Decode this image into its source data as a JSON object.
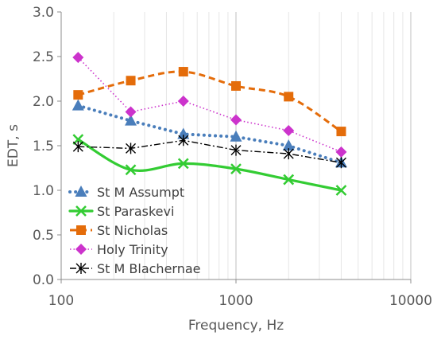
{
  "chart_data": {
    "type": "line",
    "xlabel": "Frequency, Hz",
    "ylabel": "EDT, s",
    "x_scale": "log",
    "xlim": [
      100,
      10000
    ],
    "ylim": [
      0,
      3
    ],
    "x_ticks": [
      100,
      1000,
      10000
    ],
    "x_tick_labels": [
      "100",
      "1000",
      "10000"
    ],
    "y_ticks": [
      0,
      0.5,
      1,
      1.5,
      2,
      2.5,
      3
    ],
    "y_tick_labels": [
      "0.0",
      "0.5",
      "1.0",
      "1.5",
      "2.0",
      "2.5",
      "3.0"
    ],
    "grid": "vertical major and minor gridlines",
    "legend_position": "bottom-left inside plot",
    "x": [
      125,
      250,
      500,
      1000,
      2000,
      4000
    ],
    "series": [
      {
        "name": "St M Assumpt",
        "values": [
          1.95,
          1.78,
          1.63,
          1.6,
          1.5,
          1.31
        ],
        "color": "#4a7ebb",
        "line": "dotted",
        "marker": "triangle",
        "smooth": false
      },
      {
        "name": "St Paraskevi",
        "values": [
          1.57,
          1.23,
          1.3,
          1.24,
          1.12,
          1.0
        ],
        "color": "#33cc33",
        "line": "solid",
        "marker": "x",
        "smooth": true
      },
      {
        "name": "St Nicholas",
        "values": [
          2.07,
          2.23,
          2.33,
          2.17,
          2.05,
          1.66
        ],
        "color": "#e46c0a",
        "line": "dashed",
        "marker": "square",
        "smooth": true
      },
      {
        "name": "Holy Trinity",
        "values": [
          2.49,
          1.88,
          2.0,
          1.79,
          1.67,
          1.43
        ],
        "color": "#cc33cc",
        "line": "fine-dotted",
        "marker": "diamond",
        "smooth": false
      },
      {
        "name": "St M Blachernae",
        "values": [
          1.49,
          1.47,
          1.56,
          1.45,
          1.41,
          1.31
        ],
        "color": "#000000",
        "line": "dash-dot",
        "marker": "asterisk",
        "smooth": false
      }
    ]
  }
}
